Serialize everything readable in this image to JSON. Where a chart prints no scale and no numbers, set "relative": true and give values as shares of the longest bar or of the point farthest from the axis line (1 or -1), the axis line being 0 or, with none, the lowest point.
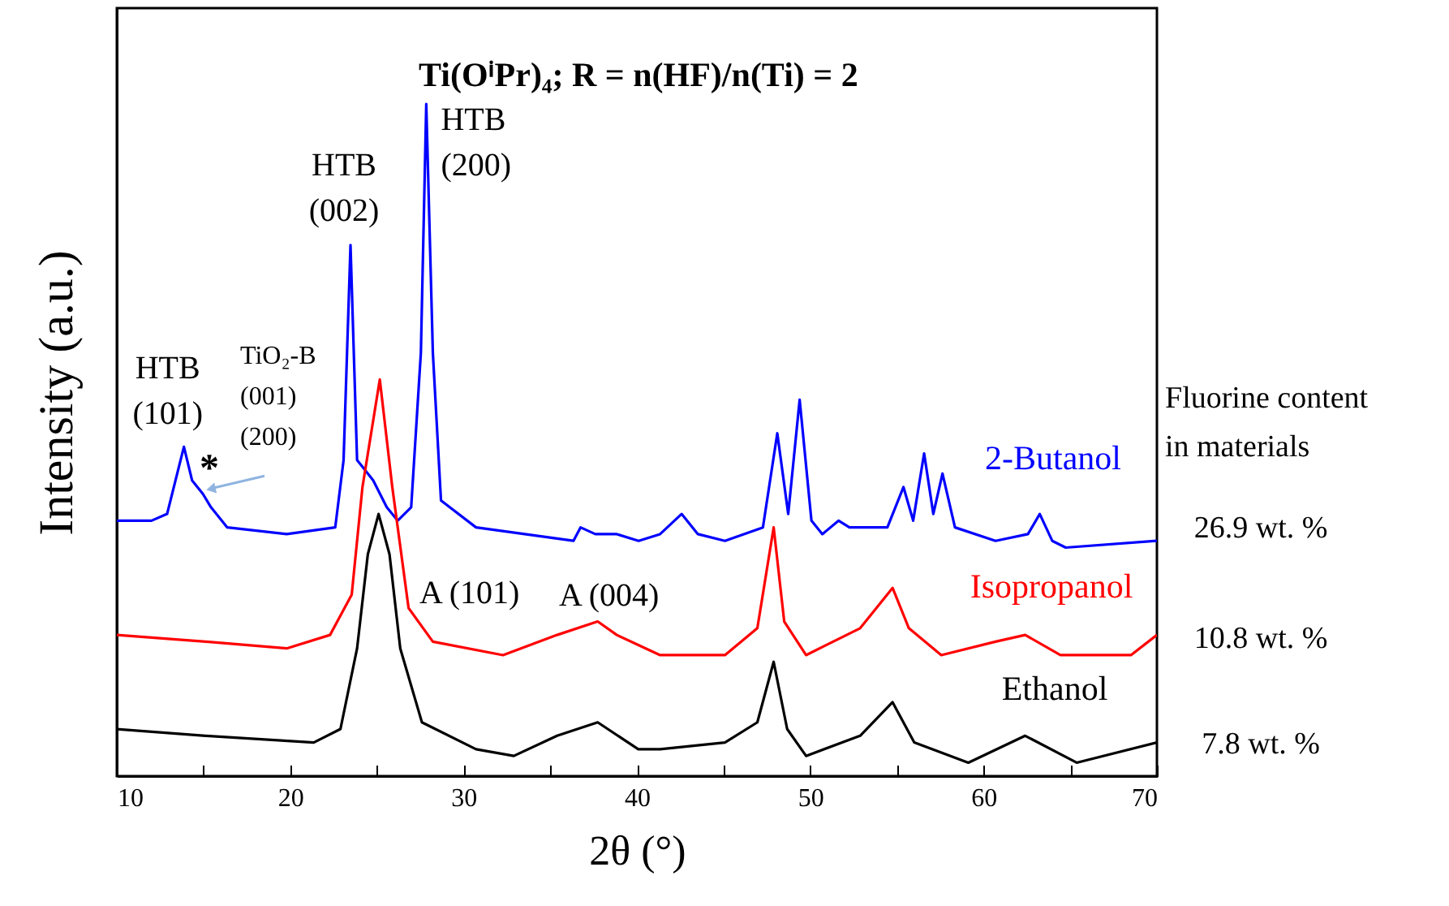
{
  "chart_data": {
    "type": "line",
    "title": "Ti(OⁱPr)₄; R = n(HF)/n(Ti) = 2",
    "xlabel": "2θ (°)",
    "ylabel": "Intensity (a.u.)",
    "relative": true,
    "tick_labels": "x",
    "grid": false,
    "xlim": [
      10,
      70
    ],
    "xticks": [
      10,
      {
        "value": 15,
        "label": null
      },
      20,
      {
        "value": 25,
        "label": null
      },
      30,
      {
        "value": 35,
        "label": null
      },
      40,
      {
        "value": 45,
        "label": null
      },
      50,
      {
        "value": 55,
        "label": null
      },
      60,
      {
        "value": 65,
        "label": null
      },
      70
    ],
    "series": [
      {
        "name": "2-Butanol",
        "color": "#0000ff",
        "x": [
          10,
          12.0,
          12.9,
          13.87,
          14.34,
          14.96,
          15.43,
          16.37,
          19.8,
          22.6,
          23.08,
          23.48,
          23.86,
          24.17,
          24.79,
          25.57,
          26.2,
          26.98,
          27.54,
          27.85,
          28.23,
          28.7,
          30.72,
          36.34,
          36.75,
          37.6,
          38.84,
          40.1,
          41.34,
          42.58,
          43.52,
          45.08,
          47.27,
          48.1,
          48.73,
          49.39,
          50.07,
          50.7,
          51.64,
          52.26,
          54.45,
          55.38,
          55.94,
          56.57,
          57.1,
          57.63,
          58.35,
          60.69,
          62.56,
          63.24,
          63.96,
          64.74,
          70
        ],
        "values": [
          0.38,
          0.38,
          0.39,
          0.49,
          0.44,
          0.42,
          0.4,
          0.37,
          0.36,
          0.37,
          0.47,
          0.79,
          0.47,
          0.46,
          0.44,
          0.4,
          0.38,
          0.4,
          0.63,
          1.0,
          0.63,
          0.41,
          0.37,
          0.35,
          0.37,
          0.36,
          0.36,
          0.35,
          0.36,
          0.39,
          0.36,
          0.35,
          0.37,
          0.51,
          0.39,
          0.56,
          0.38,
          0.36,
          0.38,
          0.37,
          0.37,
          0.43,
          0.38,
          0.48,
          0.39,
          0.45,
          0.37,
          0.35,
          0.36,
          0.39,
          0.35,
          0.34,
          0.35
        ]
      },
      {
        "name": "Isopropanol",
        "color": "#ff0000",
        "x": [
          10,
          15.12,
          19.8,
          22.3,
          23.55,
          24.17,
          25.17,
          25.89,
          26.83,
          28.23,
          32.28,
          35.4,
          37.74,
          38.84,
          41.34,
          45.08,
          46.95,
          47.89,
          48.5,
          49.76,
          52.88,
          54.75,
          55.69,
          57.56,
          60.69,
          62.4,
          64.43,
          68.5,
          70
        ],
        "values": [
          0.21,
          0.2,
          0.19,
          0.21,
          0.27,
          0.43,
          0.59,
          0.43,
          0.25,
          0.2,
          0.18,
          0.21,
          0.23,
          0.21,
          0.18,
          0.18,
          0.22,
          0.37,
          0.23,
          0.18,
          0.22,
          0.28,
          0.22,
          0.18,
          0.2,
          0.21,
          0.18,
          0.18,
          0.21
        ]
      },
      {
        "name": "Ethanol",
        "color": "#000000",
        "x": [
          10,
          15.12,
          21.36,
          22.9,
          23.86,
          24.48,
          25.1,
          25.73,
          26.35,
          27.6,
          30.72,
          32.9,
          35.4,
          37.74,
          40.08,
          41.34,
          45.08,
          46.95,
          47.89,
          48.67,
          49.76,
          52.88,
          54.75,
          56.0,
          59.12,
          62.4,
          65.37,
          70
        ],
        "values": [
          0.07,
          0.06,
          0.05,
          0.07,
          0.19,
          0.33,
          0.39,
          0.33,
          0.19,
          0.08,
          0.04,
          0.03,
          0.06,
          0.08,
          0.04,
          0.04,
          0.05,
          0.08,
          0.17,
          0.07,
          0.03,
          0.06,
          0.11,
          0.05,
          0.02,
          0.06,
          0.02,
          0.05
        ]
      }
    ],
    "annotations": [
      {
        "text": "HTB\n(101)",
        "x": 13.87,
        "y": 0.49
      },
      {
        "text": "*",
        "x": 14.96,
        "y": 0.42
      },
      {
        "text": "TiO₂-B\n(001)\n(200)",
        "x": 14.96,
        "y": 0.42
      },
      {
        "text": "HTB\n(002)",
        "x": 23.48,
        "y": 0.79
      },
      {
        "text": "HTB\n(200)",
        "x": 27.85,
        "y": 1.0
      },
      {
        "text": "A (101)",
        "x": 25.1,
        "y": 0.39
      },
      {
        "text": "A (004)",
        "x": 37.74,
        "y": 0.23
      },
      "Fluorine content\nin materials",
      "26.9 wt. %",
      "10.8 wt. %",
      "7.8 wt. %"
    ]
  }
}
